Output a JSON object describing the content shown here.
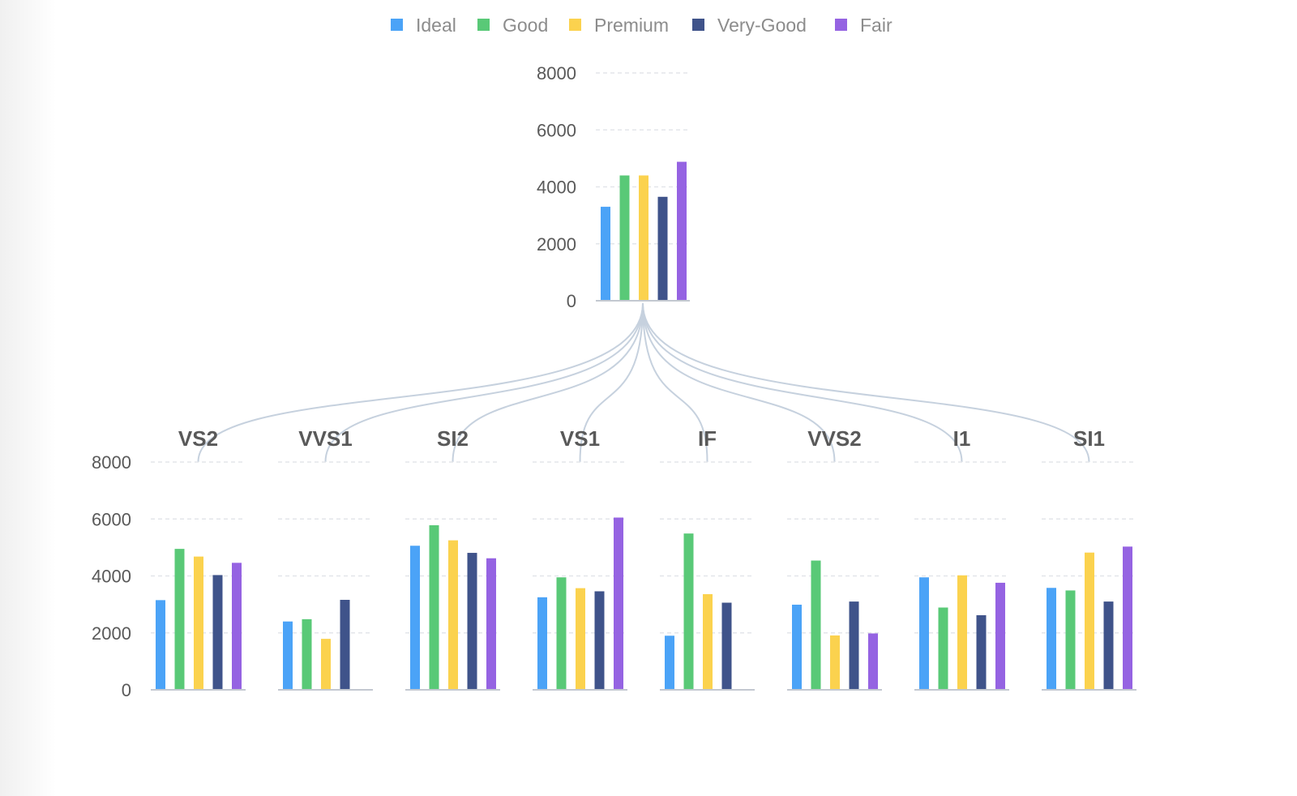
{
  "chart_data": {
    "type": "bar",
    "legend": {
      "placement": "top-center",
      "items": [
        {
          "name": "Ideal",
          "color": "#4ba3f7"
        },
        {
          "name": "Good",
          "color": "#59c977"
        },
        {
          "name": "Premium",
          "color": "#fbd24e"
        },
        {
          "name": "Very-Good",
          "color": "#3f538a"
        },
        {
          "name": "Fair",
          "color": "#9563e2"
        }
      ]
    },
    "series": [
      "Ideal",
      "Good",
      "Premium",
      "Very-Good",
      "Fair"
    ],
    "yticks": [
      0,
      2000,
      4000,
      6000,
      8000
    ],
    "ylim": [
      0,
      8000
    ],
    "grid": true,
    "root": {
      "values": [
        3300,
        4400,
        4400,
        3650,
        4880
      ]
    },
    "children": [
      {
        "label": "VS2",
        "values": [
          3150,
          4950,
          4680,
          4030,
          4460
        ]
      },
      {
        "label": "VVS1",
        "values": [
          2400,
          2480,
          1790,
          3160,
          null
        ]
      },
      {
        "label": "SI2",
        "values": [
          5060,
          5780,
          5250,
          4810,
          4620
        ]
      },
      {
        "label": "VS1",
        "values": [
          3250,
          3950,
          3570,
          3460,
          6050
        ]
      },
      {
        "label": "IF",
        "values": [
          1900,
          5490,
          3360,
          3060,
          null
        ]
      },
      {
        "label": "VVS2",
        "values": [
          2990,
          4540,
          1910,
          3100,
          1980
        ]
      },
      {
        "label": "I1",
        "values": [
          3950,
          2890,
          4020,
          2620,
          3760
        ]
      },
      {
        "label": "SI1",
        "values": [
          3580,
          3490,
          4820,
          3100,
          5030
        ]
      }
    ]
  }
}
